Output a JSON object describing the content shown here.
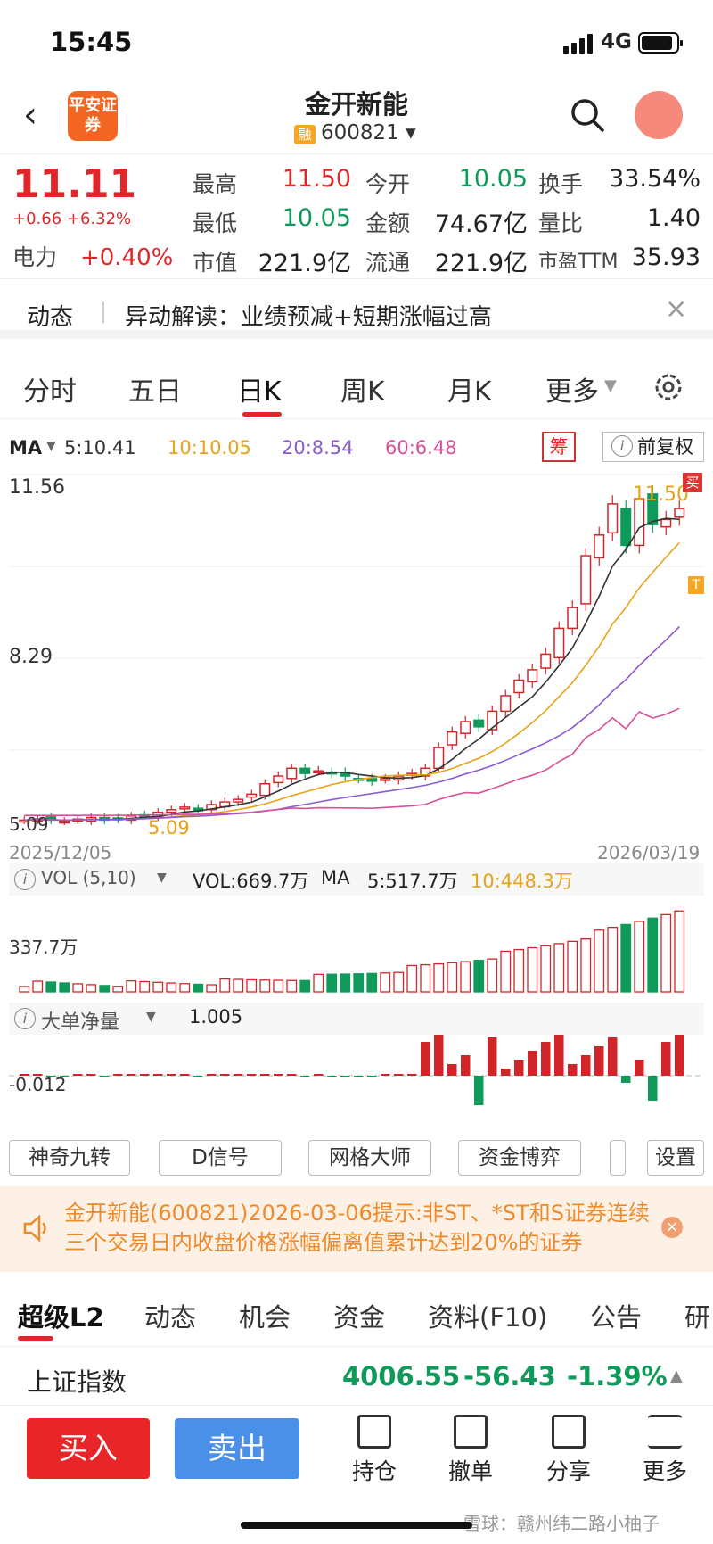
{
  "status": {
    "time": "15:45",
    "network": "4G"
  },
  "header": {
    "back": "‹",
    "logo": "平安证券",
    "title": "金开新能",
    "badge": "融",
    "code": "600821 ▾"
  },
  "quote": {
    "price": "11.11",
    "change": "+0.66 +6.32%",
    "sector_name": "电力",
    "sector_change": "+0.40%",
    "high_label": "最高",
    "high": "11.50",
    "open_label": "今开",
    "open": "10.05",
    "turnover_label": "换手",
    "turnover": "33.54%",
    "low_label": "最低",
    "low": "10.05",
    "amount_label": "金额",
    "amount": "74.67亿",
    "vol_ratio_label": "量比",
    "vol_ratio": "1.40",
    "mcap_label": "市值",
    "mcap": "221.9亿",
    "float_label": "流通",
    "float": "221.9亿",
    "pe_label": "市盈TTM",
    "pe": "35.93"
  },
  "news": {
    "tag": "动态",
    "text": "异动解读：业绩预减+短期涨幅过高"
  },
  "tabs": [
    "分时",
    "五日",
    "日K",
    "周K",
    "月K",
    "更多"
  ],
  "ma": {
    "label": "MA",
    "ma5": "5:10.41",
    "ma10": "10:10.05",
    "ma20": "20:8.54",
    "ma60": "60:6.48",
    "chou": "筹",
    "fuquan": "前复权"
  },
  "chart_labels": {
    "top": "11.56",
    "mid": "8.29",
    "low_left": "5.09",
    "low_right": "5.09",
    "peak": "11.50",
    "date_start": "2025/12/05",
    "date_end": "2026/03/19",
    "buy_tag": "买",
    "t_tag": "T"
  },
  "vol": {
    "label": "VOL (5,10)",
    "vol": "VOL:669.7万",
    "ma_label": "MA",
    "ma5": "5:517.7万",
    "ma10": "10:448.3万",
    "axis": "337.7万"
  },
  "bigorder": {
    "label": "大单净量",
    "value": "1.005",
    "axis": "-0.012"
  },
  "tools": [
    "神奇九转",
    "D信号",
    "网格大师",
    "资金博弈",
    "",
    "设置"
  ],
  "notice": {
    "text": "金开新能(600821)2026-03-06提示:非ST、*ST和S证券连续三个交易日内收盘价格涨幅偏离值累计达到20%的证券"
  },
  "bottom_tabs": [
    "超级L2",
    "动态",
    "机会",
    "资金",
    "资料(F10)",
    "公告",
    "研"
  ],
  "index": {
    "name": "上证指数",
    "value": "4006.55",
    "change": "-56.43",
    "pct": "-1.39%"
  },
  "actions": {
    "buy": "买入",
    "sell": "卖出",
    "hold": "持仓",
    "cancel": "撤单",
    "share": "分享",
    "more": "更多"
  },
  "watermark": "雪球：赣州纬二路小柚子",
  "chart_data": {
    "type": "candlestick",
    "x_start": "2025/12/05",
    "x_end": "2026/03/19",
    "ylim": [
      5.09,
      11.56
    ],
    "closes": [
      5.1,
      5.12,
      5.1,
      5.08,
      5.12,
      5.15,
      5.1,
      5.12,
      5.18,
      5.2,
      5.25,
      5.3,
      5.35,
      5.28,
      5.4,
      5.45,
      5.5,
      5.6,
      5.8,
      5.95,
      6.1,
      6.0,
      6.05,
      6.0,
      5.95,
      5.9,
      5.85,
      5.9,
      5.95,
      6.0,
      6.1,
      6.5,
      6.8,
      7.0,
      6.9,
      7.2,
      7.5,
      7.8,
      8.0,
      8.3,
      8.8,
      9.2,
      10.2,
      10.6,
      11.2,
      10.4,
      11.3,
      10.8,
      10.9,
      11.11
    ],
    "series": [
      {
        "name": "MA5"
      },
      {
        "name": "MA10"
      },
      {
        "name": "MA20"
      },
      {
        "name": "MA60"
      }
    ]
  }
}
